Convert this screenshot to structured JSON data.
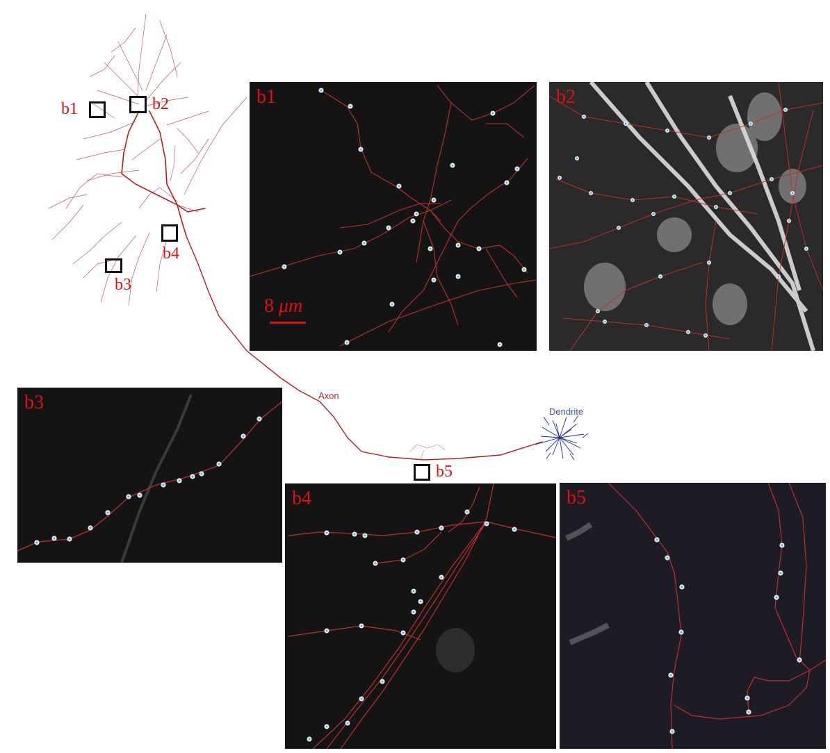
{
  "neuron": {
    "axon_label": "Axon",
    "dendrite_label": "Dendrite",
    "axon_color": "#b81c1c",
    "dendrite_color": "#1f2a9e"
  },
  "region_boxes": [
    {
      "id": "b1",
      "label": "b1"
    },
    {
      "id": "b2",
      "label": "b2"
    },
    {
      "id": "b3",
      "label": "b3"
    },
    {
      "id": "b4",
      "label": "b4"
    },
    {
      "id": "b5",
      "label": "b5"
    }
  ],
  "panels": [
    {
      "id": "b1",
      "label": "b1"
    },
    {
      "id": "b2",
      "label": "b2"
    },
    {
      "id": "b3",
      "label": "b3"
    },
    {
      "id": "b4",
      "label": "b4"
    },
    {
      "id": "b5",
      "label": "b5"
    }
  ],
  "scale_bar": {
    "value": "8",
    "unit": "μm"
  },
  "colors": {
    "trace": "#c0302a",
    "bouton": "#3fb7e8",
    "label": "#e01010"
  }
}
